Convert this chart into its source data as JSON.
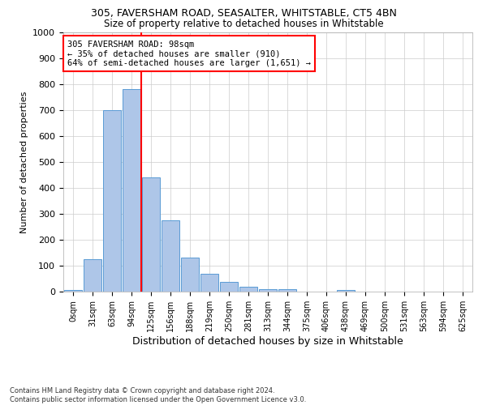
{
  "title1": "305, FAVERSHAM ROAD, SEASALTER, WHITSTABLE, CT5 4BN",
  "title2": "Size of property relative to detached houses in Whitstable",
  "xlabel": "Distribution of detached houses by size in Whitstable",
  "ylabel": "Number of detached properties",
  "footnote": "Contains HM Land Registry data © Crown copyright and database right 2024.\nContains public sector information licensed under the Open Government Licence v3.0.",
  "bar_labels": [
    "0sqm",
    "31sqm",
    "63sqm",
    "94sqm",
    "125sqm",
    "156sqm",
    "188sqm",
    "219sqm",
    "250sqm",
    "281sqm",
    "313sqm",
    "344sqm",
    "375sqm",
    "406sqm",
    "438sqm",
    "469sqm",
    "500sqm",
    "531sqm",
    "563sqm",
    "594sqm",
    "625sqm"
  ],
  "bar_values": [
    5,
    125,
    700,
    780,
    440,
    275,
    130,
    70,
    37,
    20,
    10,
    10,
    0,
    0,
    5,
    0,
    0,
    0,
    0,
    0,
    0
  ],
  "bar_color": "#aec6e8",
  "bar_edge_color": "#5a9bd5",
  "vline_x": 3.5,
  "annotation_text": "305 FAVERSHAM ROAD: 98sqm\n← 35% of detached houses are smaller (910)\n64% of semi-detached houses are larger (1,651) →",
  "annotation_box_color": "white",
  "annotation_border_color": "red",
  "vline_color": "red",
  "ylim": [
    0,
    1000
  ],
  "yticks": [
    0,
    100,
    200,
    300,
    400,
    500,
    600,
    700,
    800,
    900,
    1000
  ],
  "background_color": "white",
  "grid_color": "#cccccc"
}
